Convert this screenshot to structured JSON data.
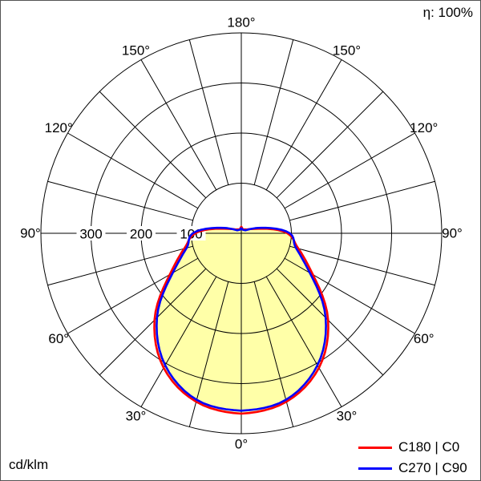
{
  "chart_data": {
    "type": "polar_intensity_distribution",
    "title": "",
    "unit": "cd/klm",
    "efficiency": "η: 100%",
    "angle_zero_position": "bottom",
    "mirrored": true,
    "angle_grid_step_deg": 15,
    "angle_label_step_deg": 30,
    "angle_labels": [
      "0°",
      "30°",
      "60°",
      "90°",
      "120°",
      "150°",
      "180°"
    ],
    "radial_ticks": [
      100,
      200,
      300
    ],
    "radial_tick_labels": [
      "100",
      "200",
      "300"
    ],
    "radial_max": 400,
    "grid_color": "#000000",
    "fill_color": "#ffffa8",
    "series": [
      {
        "name": "C180 | C0",
        "color": "#ff0000",
        "angles_deg": [
          0,
          15,
          30,
          45,
          60,
          75,
          90,
          105,
          120,
          135,
          150,
          165,
          180
        ],
        "values_cd_per_klm": [
          360,
          348,
          310,
          245,
          165,
          118,
          92,
          35,
          16,
          11,
          9,
          9,
          13
        ]
      },
      {
        "name": "C270 | C90",
        "color": "#0000ff",
        "angles_deg": [
          0,
          15,
          30,
          45,
          60,
          75,
          90,
          105,
          120,
          135,
          150,
          165,
          180
        ],
        "values_cd_per_klm": [
          354,
          344,
          304,
          238,
          158,
          113,
          97,
          42,
          14,
          9,
          8,
          8,
          10
        ]
      }
    ],
    "legend": [
      {
        "label": "C180 | C0",
        "color": "#ff0000"
      },
      {
        "label": "C270 | C90",
        "color": "#0000ff"
      }
    ]
  }
}
